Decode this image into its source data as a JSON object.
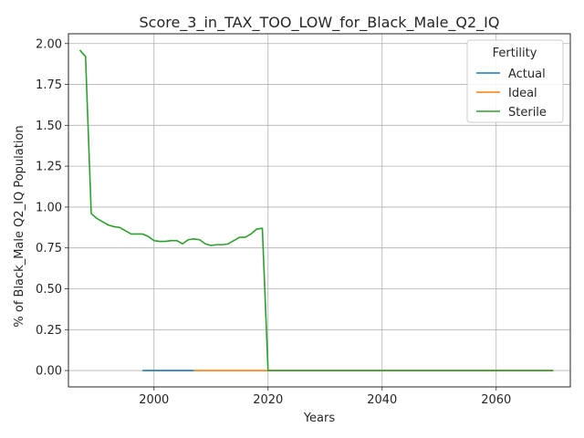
{
  "chart_data": {
    "type": "line",
    "title": "Score_3_in_TAX_TOO_LOW_for_Black_Male_Q2_IQ",
    "xlabel": "Years",
    "ylabel": "% of Black_Male Q2_IQ Population",
    "xlim": [
      1985,
      2073
    ],
    "ylim": [
      -0.1,
      2.06
    ],
    "x_ticks": [
      2000,
      2020,
      2040,
      2060
    ],
    "y_ticks": [
      0.0,
      0.25,
      0.5,
      0.75,
      1.0,
      1.25,
      1.5,
      1.75,
      2.0
    ],
    "x_tick_labels": [
      "2000",
      "2020",
      "2040",
      "2060"
    ],
    "y_tick_labels": [
      "0.00",
      "0.25",
      "0.50",
      "0.75",
      "1.00",
      "1.25",
      "1.50",
      "1.75",
      "2.00"
    ],
    "grid": true,
    "legend": {
      "title": "Fertility",
      "placement": "top-right"
    },
    "series": [
      {
        "name": "Actual",
        "color": "#1f77b4",
        "x": [
          1998,
          2000,
          2002,
          2004,
          2006,
          2007
        ],
        "y": [
          0,
          0,
          0,
          0,
          0,
          0
        ]
      },
      {
        "name": "Ideal",
        "color": "#ff7f0e",
        "x": [
          2007,
          2020,
          2030,
          2040,
          2050,
          2060,
          2070
        ],
        "y": [
          0,
          0,
          0,
          0,
          0,
          0,
          0
        ]
      },
      {
        "name": "Sterile",
        "color": "#2ca02c",
        "x": [
          1987,
          1988,
          1989,
          1990,
          1991,
          1992,
          1993,
          1994,
          1995,
          1996,
          1997,
          1998,
          1999,
          2000,
          2001,
          2002,
          2003,
          2004,
          2005,
          2006,
          2007,
          2008,
          2009,
          2010,
          2011,
          2012,
          2013,
          2014,
          2015,
          2016,
          2017,
          2018,
          2019,
          2020,
          2030,
          2040,
          2050,
          2060,
          2070
        ],
        "y": [
          1.96,
          1.92,
          0.96,
          0.93,
          0.91,
          0.89,
          0.88,
          0.875,
          0.855,
          0.835,
          0.835,
          0.835,
          0.82,
          0.795,
          0.79,
          0.79,
          0.795,
          0.795,
          0.775,
          0.8,
          0.805,
          0.8,
          0.775,
          0.765,
          0.77,
          0.77,
          0.775,
          0.795,
          0.815,
          0.815,
          0.835,
          0.865,
          0.87,
          0.0,
          0.0,
          0.0,
          0.0,
          0.0,
          0.0
        ]
      }
    ]
  }
}
